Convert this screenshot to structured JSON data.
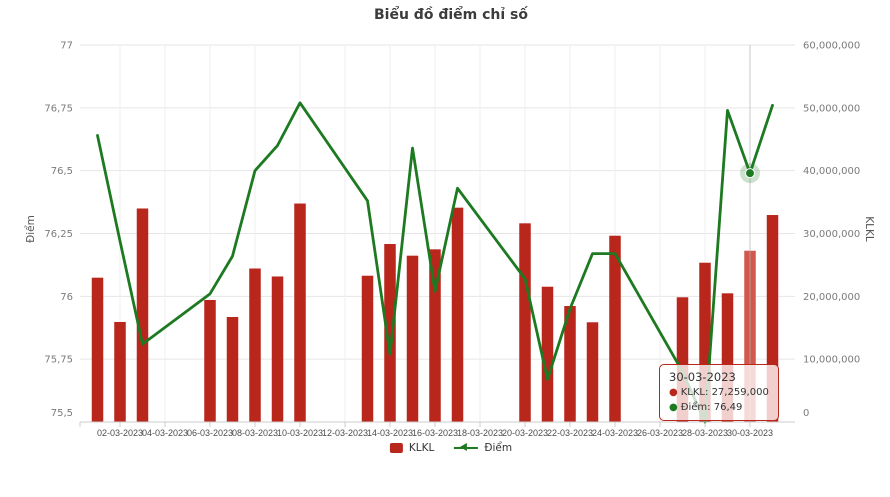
{
  "title": "Biểu đồ điểm chỉ số",
  "legend": [
    {
      "label": "KLKL",
      "type": "bar"
    },
    {
      "label": "Điểm",
      "type": "line"
    }
  ],
  "tooltip": {
    "title": "30-03-2023",
    "rows": [
      {
        "label": "KLKL:",
        "value": "27,259,000"
      },
      {
        "label": "Điểm:",
        "value": "76,49"
      }
    ]
  },
  "chart_data": {
    "type": "combo bar+line",
    "title": "Biểu đồ điểm chỉ số",
    "dates": [
      "01-03-2023",
      "02-03-2023",
      "03-03-2023",
      "06-03-2023",
      "07-03-2023",
      "08-03-2023",
      "09-03-2023",
      "10-03-2023",
      "13-03-2023",
      "14-03-2023",
      "15-03-2023",
      "16-03-2023",
      "17-03-2023",
      "20-03-2023",
      "21-03-2023",
      "22-03-2023",
      "23-03-2023",
      "24-03-2023",
      "27-03-2023",
      "28-03-2023",
      "29-03-2023",
      "30-03-2023",
      "31-03-2023"
    ],
    "day_of_month": [
      1,
      2,
      3,
      6,
      7,
      8,
      9,
      10,
      13,
      14,
      15,
      16,
      17,
      20,
      21,
      22,
      23,
      24,
      27,
      28,
      29,
      30,
      31
    ],
    "series": [
      {
        "name": "KLKL",
        "type": "bar",
        "axis": "right",
        "color": "#b9261c",
        "values": [
          22970000,
          15920000,
          33980000,
          19420000,
          16710000,
          24430000,
          23160000,
          34770000,
          23280000,
          28330000,
          26470000,
          27480000,
          34110000,
          31620000,
          21530000,
          18460000,
          15870000,
          29650000,
          19850000,
          25350000,
          20480000,
          27259000,
          32940000
        ]
      },
      {
        "name": "Điểm",
        "type": "line",
        "axis": "left",
        "color": "#1d7a21",
        "values": [
          76.64,
          76.22,
          75.81,
          76.01,
          76.16,
          76.5,
          76.6,
          76.77,
          76.38,
          75.77,
          76.59,
          76.02,
          76.43,
          76.07,
          75.67,
          75.95,
          76.17,
          76.17,
          75.7,
          75.5,
          76.74,
          76.49,
          76.76
        ]
      }
    ],
    "x_ticks": [
      {
        "day": 2,
        "label": "02-03-2023"
      },
      {
        "day": 4,
        "label": "04-03-2023"
      },
      {
        "day": 6,
        "label": "06-03-2023"
      },
      {
        "day": 8,
        "label": "08-03-2023"
      },
      {
        "day": 10,
        "label": "10-03-2023"
      },
      {
        "day": 12,
        "label": "12-03-2023"
      },
      {
        "day": 14,
        "label": "14-03-2023"
      },
      {
        "day": 16,
        "label": "16-03-2023"
      },
      {
        "day": 18,
        "label": "18-03-2023"
      },
      {
        "day": 20,
        "label": "20-03-2023"
      },
      {
        "day": 22,
        "label": "22-03-2023"
      },
      {
        "day": 24,
        "label": "24-03-2023"
      },
      {
        "day": 26,
        "label": "26-03-2023"
      },
      {
        "day": 28,
        "label": "28-03-2023"
      },
      {
        "day": 30,
        "label": "30-03-2023"
      }
    ],
    "y_left": {
      "label": "Điểm",
      "min": 75.5,
      "max": 77,
      "tick_values": [
        77,
        76.75,
        76.5,
        76.25,
        76,
        75.75,
        75.5
      ],
      "tick_labels": [
        "77",
        "76,75",
        "76,5",
        "76,25",
        "76",
        "75,75",
        "75,5"
      ]
    },
    "y_right": {
      "label": "KLKL",
      "min": 0,
      "max": 60000000,
      "tick_values": [
        60000000,
        50000000,
        40000000,
        30000000,
        20000000,
        10000000,
        0
      ],
      "tick_labels": [
        "60,000,000",
        "50,000,000",
        "40,000,000",
        "30,000,000",
        "20,000,000",
        "10,000,000",
        "0"
      ]
    },
    "hover": {
      "date": "30-03-2023",
      "day": 30,
      "diem": 76.49,
      "bar_highlight_color": "#d0584c"
    },
    "grid": true,
    "legend_position": "bottom"
  }
}
